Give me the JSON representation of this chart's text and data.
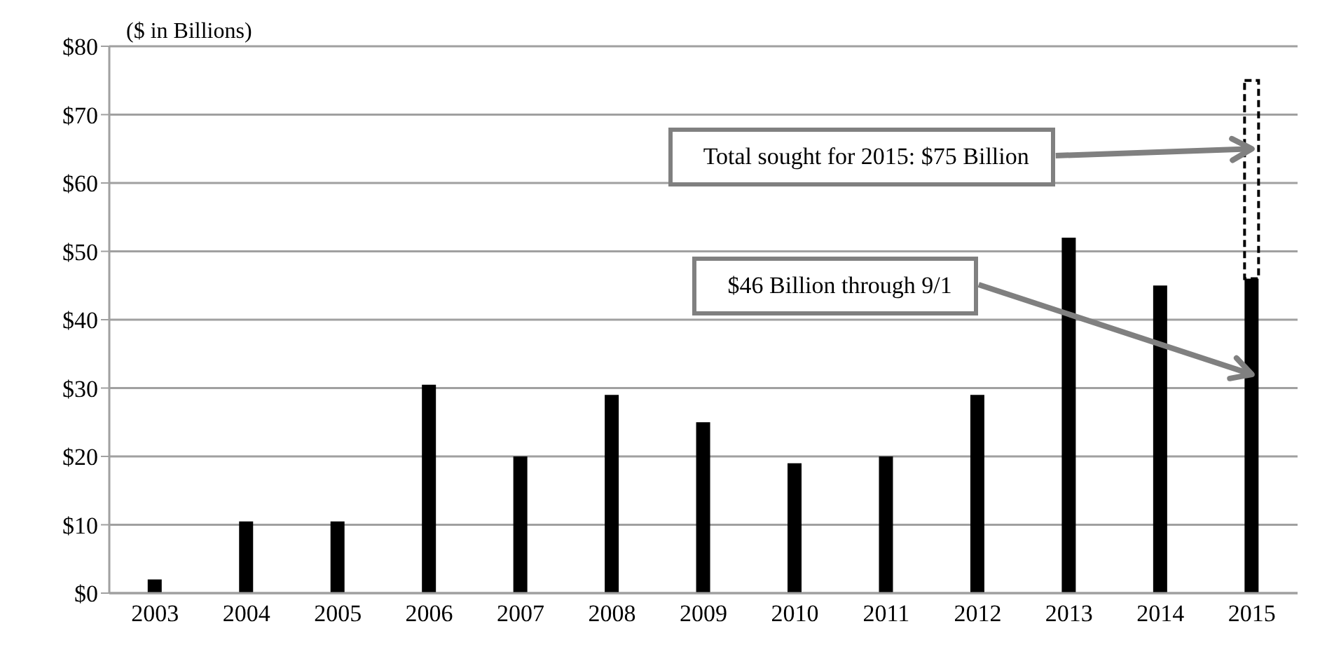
{
  "chart_data": {
    "type": "bar",
    "ylabel": "($ in Billions)",
    "categories": [
      "2003",
      "2004",
      "2005",
      "2006",
      "2007",
      "2008",
      "2009",
      "2010",
      "2011",
      "2012",
      "2013",
      "2014",
      "2015"
    ],
    "series": [
      {
        "color": "#000000",
        "values": [
          2,
          10.5,
          10.5,
          30.5,
          20,
          29,
          25,
          19,
          20,
          29,
          52,
          45,
          46
        ]
      },
      {
        "color": "#000000",
        "line_style": "dashed",
        "values": [
          null,
          null,
          null,
          null,
          null,
          null,
          null,
          null,
          null,
          null,
          null,
          null,
          29
        ]
      }
    ],
    "stacked": true,
    "ylim": [
      0,
      80
    ],
    "yticks": [
      {
        "value": 0,
        "label": "$0"
      },
      {
        "value": 10,
        "label": "$10"
      },
      {
        "value": 20,
        "label": "$20"
      },
      {
        "value": 30,
        "label": "$30"
      },
      {
        "value": 40,
        "label": "$40"
      },
      {
        "value": 50,
        "label": "$50"
      },
      {
        "value": 60,
        "label": "$60"
      },
      {
        "value": 70,
        "label": "$70"
      },
      {
        "value": 80,
        "label": "$80"
      }
    ],
    "grid": "y",
    "annotations": [
      {
        "text": "Total sought for 2015: $75 Billion",
        "x": "2015",
        "y": 65
      },
      {
        "text": "$46 Billion through 9/1",
        "x": "2015",
        "y": 32
      }
    ]
  }
}
